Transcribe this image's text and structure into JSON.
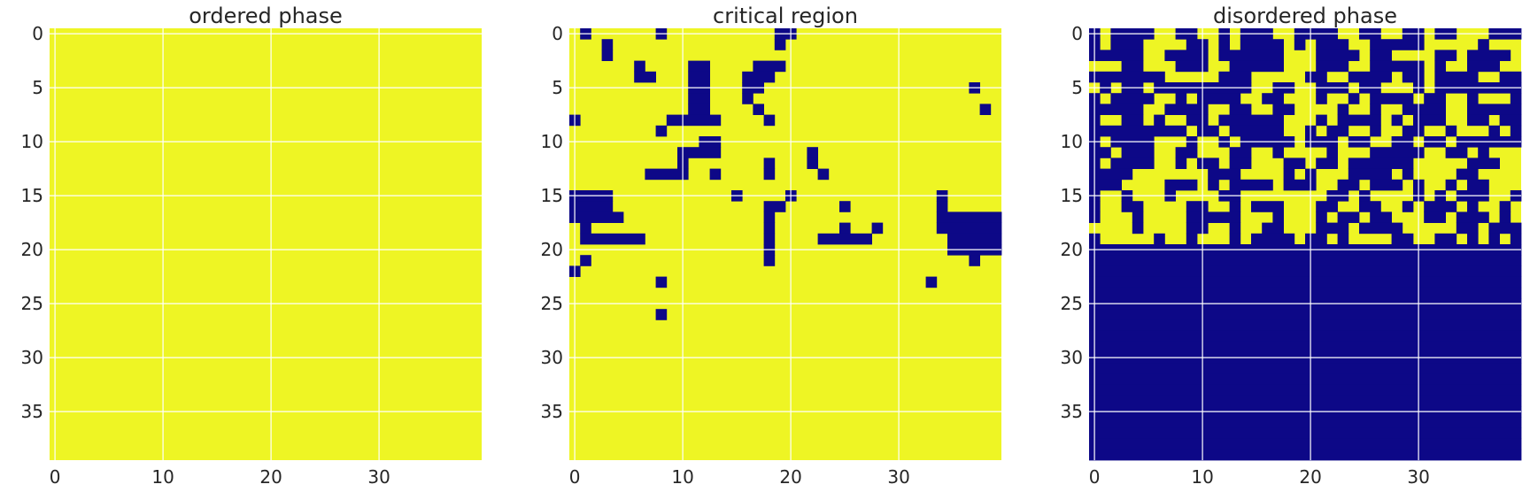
{
  "colors": {
    "up": "#EEF524",
    "down": "#0D0887",
    "grid": "#ffffff",
    "text": "#262626"
  },
  "chart_data": [
    {
      "type": "heatmap",
      "title": "ordered phase",
      "grid": true,
      "xticks": [
        0,
        10,
        20,
        30
      ],
      "yticks": [
        0,
        5,
        10,
        15,
        20,
        25,
        30,
        35
      ],
      "size": 40,
      "values": [
        "1111111111111111111111111111111111111111",
        "1111111111111111111111111111111111111111",
        "1111111111111111111111111111111111111111",
        "1111111111111111111111111111111111111111",
        "1111111111111111111111111111111111111111",
        "1111111111111111111111111111111111111111",
        "1111111111111111111111111111111111111111",
        "1111111111111111111111111111111111111111",
        "1111111111111111111111111111111111111111",
        "1111111111111111111111111111111111111111",
        "1111111111111111111111111111111111111111",
        "1111111111111111111111111111111111111111",
        "1111111111111111111111111111111111111111",
        "1111111111111111111111111111111111111111",
        "1111111111111111111111111111111111111111",
        "1111111111111111111111111111111111111111",
        "1111111111111111111111111111111111111111",
        "1111111111111111111111111111111111111111",
        "1111111111111111111111111111111111111111",
        "1111111111111111111111111111111111111111",
        "1111111111111111111111111111111111111111",
        "1111111111111111111111111111111111111111",
        "1111111111111111111111111111111111111111",
        "1111111111111111111111111111111111111111",
        "1111111111111111111111111111111111111111",
        "1111111111111111111111111111111111111111",
        "1111111111111111111111111111111111111111",
        "1111111111111111111111111111111111111111",
        "1111111111111111111111111111111111111111",
        "1111111111111111111111111111111111111111",
        "1111111111111111111111111111111111111111",
        "1111111111111111111111111111111111111111",
        "1111111111111111111111111111111111111111",
        "1111111111111111111111111111111111111111",
        "1111111111111111111111111111111111111111",
        "1111111111111111111111111111111111111111",
        "1111111111111111111111111111111111111111",
        "1111111111111111111111111111111111111111",
        "1111111111111111111111111111111111111111",
        "1111111111111111111111111111111111111111"
      ]
    },
    {
      "type": "heatmap",
      "title": "critical region",
      "grid": true,
      "xticks": [
        0,
        10,
        20,
        30
      ],
      "yticks": [
        0,
        5,
        10,
        15,
        20,
        25,
        30,
        35
      ],
      "size": 40,
      "values": [
        "1011111101111111111001111111111111111111",
        "1110111111111111111011111111111111111111",
        "1110111111111111111111111111111111111111",
        "1111110111100111100011111111111111111111",
        "1111110011100111000111111111111111111111",
        "1111111111100111001111111111111111111011",
        "1111111111100111011111111111111111111111",
        "1111111111100111101111111111111111111101",
        "0111111110000011110111111111111111111111",
        "1111111101111111111111111111111111111111",
        "1111111111110011111111111111111111111111",
        "1111111111000011111111011111111111111111",
        "1111111111011111110111011111111111111111",
        "1111111000011011110111101111111111111111",
        "1111111111111111111111111111111111111111",
        "0000111111111110111101111111111111011111",
        "0000111111111111110011111011111111011111",
        "0000011111111111110111111111111111000000",
        "1011111111111111110111111011011111000000",
        "1000000111111111110111100000111111100000",
        "1111111111111111110111111111111111100000",
        "1011111111111111110111111111111111111011",
        "0111111111111111111111111111111111111111",
        "1111111101111111111111111111111110111111",
        "1111111111111111111111111111111111111111",
        "1111111111111111111111111111111111111111",
        "1111111101111111111111111111111111111111",
        "1111111111111111111111111111111111111111",
        "1111111111111111111111111111111111111111",
        "1111111111111111111111111111111111111111",
        "1111111111111111111111111111111111111111",
        "1111111111111111111111111111111111111111",
        "1111111111111111111111111111111111111111",
        "1111111111111111111111111111111111111111",
        "1111111111111111111111111111111111111111",
        "1111111111111111111111111111111111111111",
        "1111111111111111111111111111111111111111",
        "1111111111111111111111111111111111111111",
        "1111111111111111111111111111111111111111",
        "1111111111111111111111111111111111111111"
      ]
    },
    {
      "type": "heatmap",
      "title": "disordered phase",
      "grid": true,
      "xticks": [
        0,
        10,
        20,
        30
      ],
      "yticks": [
        0,
        5,
        10,
        15,
        20,
        25,
        30,
        35
      ],
      "size": 40,
      "values": [
        "0100001100110100011000011001100100111000",
        "0100011110010100001010001100000111110111",
        "0000011000010000001110000100111100100001",
        "1110011100011000001110001100000101100011",
        "0000000111110001111100110000100100001100",
        "1010010000000001100110001001110100000000",
        "0100001101000011001110110100001001101110",
        "0000011000011001100111101101100001100000",
        "0110010110010000001110100001010001100100",
        "0000000001001000001101001101100110111010",
        "0100001110110100000100010011001001000000",
        "0010001100111001101111011100000110010111",
        "0100001101001001110010010000001111100011",
        "0000111111100011110101110000101111001111",
        "0001111000101000010001100100010110100111",
        "0110111011110011111111001011110101000110",
        "0110011110011010001110011001101000101101",
        "0111011110000011101110100100111001000101",
        "1111011110011011001110001000011111001000",
        "0111110110111010000100101111001100101010",
        "0000000000000000000000000000000000000000",
        "0000000000000000000000000000000000000000",
        "0000000000000000000000000000000000000000",
        "0000000000000000000000000000000000000000",
        "0000000000000000000000000000000000000000",
        "0000000000000000000000000000000000000000",
        "0000000000000000000000000000000000000000",
        "0000000000000000000000000000000000000000",
        "0000000000000000000000000000000000000000",
        "0000000000000000000000000000000000000000",
        "0000000000000000000000000000000000000000",
        "0000000000000000000000000000000000000000",
        "0000000000000000000000000000000000000000",
        "0000000000000000000000000000000000000000",
        "0000000000000000000000000000000000000000",
        "0000000000000000000000000000000000000000",
        "0000000000000000000000000000000000000000",
        "0000000000000000000000000000000000000000",
        "0000000000000000000000000000000000000000",
        "0000000000000000000000000000000000000000"
      ]
    }
  ]
}
